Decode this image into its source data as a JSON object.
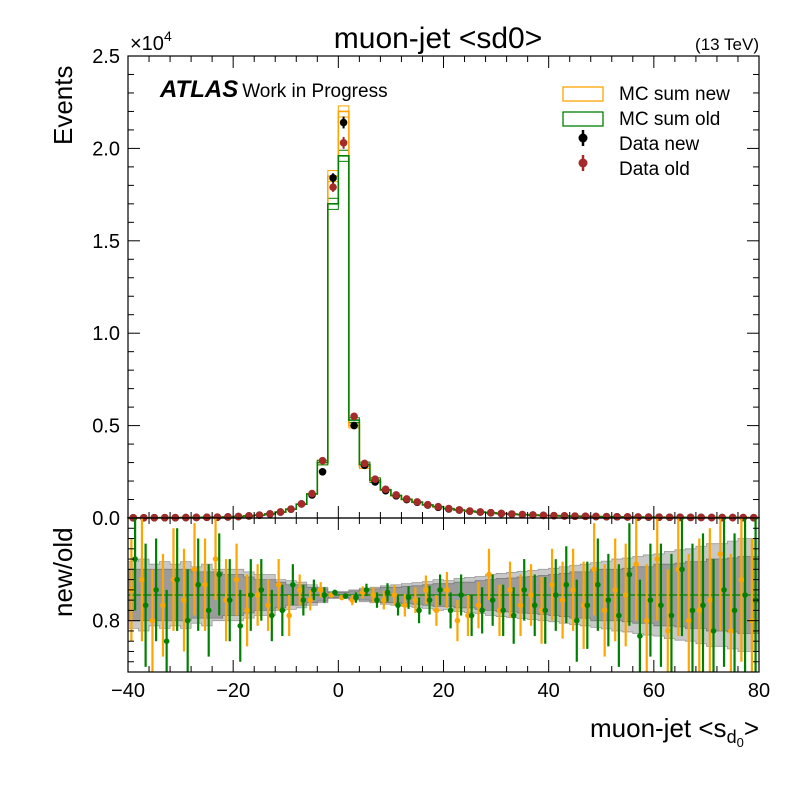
{
  "chart_data": [
    {
      "type": "histogram",
      "title": "muon-jet <sd0>",
      "energy_label": "(13 TeV)",
      "ylabel": "Events",
      "y_multiplier": "×10",
      "y_multiplier_exp": "4",
      "experiment": "ATLAS",
      "experiment_suffix": "Work in Progress",
      "xlim": [
        -40,
        80
      ],
      "ylim": [
        0,
        25000
      ],
      "x_ticks": [
        -40,
        -20,
        0,
        20,
        40,
        60,
        80
      ],
      "y_ticks": [
        0,
        5000,
        10000,
        15000,
        20000,
        25000
      ],
      "y_tick_labels": [
        "0.0",
        "0.5",
        "1.0",
        "1.5",
        "2.0",
        "2.5"
      ],
      "legend_position": "top-right",
      "legend": [
        {
          "label": "MC sum new",
          "kind": "mc",
          "color": "#ffa500"
        },
        {
          "label": "MC sum old",
          "kind": "mc",
          "color": "#008000"
        },
        {
          "label": "Data new",
          "kind": "data",
          "color": "#000000"
        },
        {
          "label": "Data old",
          "kind": "data",
          "color": "#a52a2a"
        }
      ],
      "bin_edges": [
        -40,
        -38,
        -36,
        -34,
        -32,
        -30,
        -28,
        -26,
        -24,
        -22,
        -20,
        -18,
        -16,
        -14,
        -12,
        -10,
        -8,
        -6,
        -4,
        -2,
        0,
        2,
        4,
        6,
        8,
        10,
        12,
        14,
        16,
        18,
        20,
        22,
        24,
        26,
        28,
        30,
        32,
        34,
        36,
        38,
        40,
        42,
        44,
        46,
        48,
        50,
        52,
        54,
        56,
        58,
        60,
        62,
        64,
        66,
        68,
        70,
        72,
        74,
        76,
        78,
        80
      ],
      "mc_new": [
        10,
        12,
        14,
        16,
        18,
        22,
        28,
        35,
        45,
        60,
        80,
        110,
        150,
        220,
        320,
        480,
        750,
        1300,
        3000,
        18500,
        22000,
        5000,
        2800,
        2000,
        1500,
        1200,
        1000,
        850,
        700,
        600,
        500,
        430,
        370,
        320,
        280,
        240,
        210,
        180,
        160,
        140,
        125,
        110,
        98,
        88,
        80,
        72,
        65,
        58,
        52,
        47,
        43,
        39,
        35,
        32,
        29,
        26,
        24,
        22,
        20,
        18
      ],
      "mc_old": [
        10,
        12,
        14,
        16,
        18,
        22,
        28,
        35,
        45,
        60,
        80,
        110,
        150,
        220,
        320,
        480,
        750,
        1300,
        3000,
        17000,
        19600,
        5300,
        2900,
        2050,
        1530,
        1220,
        1010,
        860,
        710,
        610,
        505,
        435,
        372,
        322,
        282,
        242,
        212,
        182,
        161,
        141,
        126,
        111,
        99,
        89,
        81,
        73,
        66,
        59,
        53,
        48,
        44,
        40,
        36,
        33,
        30,
        27,
        25,
        23,
        21,
        19
      ],
      "data_new": [
        10,
        12,
        14,
        16,
        18,
        22,
        28,
        35,
        45,
        60,
        80,
        110,
        150,
        220,
        320,
        480,
        760,
        1250,
        2500,
        18400,
        21400,
        5000,
        2850,
        1950,
        1480,
        1200,
        1000,
        850,
        700,
        580,
        490,
        430,
        370,
        320,
        280,
        240,
        210,
        180,
        160,
        140,
        125,
        110,
        98,
        88,
        80,
        72,
        65,
        58,
        52,
        47,
        43,
        39,
        35,
        32,
        29,
        26,
        24,
        22,
        20,
        18
      ],
      "data_old": [
        10,
        12,
        14,
        16,
        18,
        22,
        28,
        35,
        45,
        60,
        80,
        110,
        150,
        220,
        320,
        480,
        760,
        1320,
        3100,
        17900,
        20300,
        5500,
        2950,
        2100,
        1550,
        1250,
        1030,
        870,
        720,
        610,
        510,
        440,
        375,
        325,
        285,
        245,
        215,
        185,
        162,
        142,
        127,
        112,
        100,
        90,
        82,
        74,
        67,
        60,
        54,
        49,
        45,
        41,
        37,
        34,
        31,
        28,
        26,
        24,
        22,
        20
      ],
      "data_new_err": [
        90,
        90,
        90,
        90,
        90,
        90,
        90,
        90,
        90,
        90,
        90,
        90,
        90,
        90,
        90,
        90,
        90,
        90,
        100,
        250,
        320,
        120,
        90,
        90,
        90,
        90,
        90,
        90,
        90,
        90,
        90,
        90,
        90,
        90,
        90,
        90,
        90,
        90,
        90,
        90,
        90,
        90,
        90,
        90,
        90,
        90,
        90,
        90,
        90,
        90,
        90,
        90,
        90,
        90,
        90,
        90,
        90,
        90,
        90,
        90
      ],
      "data_old_err": [
        90,
        90,
        90,
        90,
        90,
        90,
        90,
        90,
        90,
        90,
        90,
        90,
        90,
        90,
        90,
        90,
        90,
        90,
        100,
        250,
        320,
        120,
        90,
        90,
        90,
        90,
        90,
        90,
        90,
        90,
        90,
        90,
        90,
        90,
        90,
        90,
        90,
        90,
        90,
        90,
        90,
        90,
        90,
        90,
        90,
        90,
        90,
        90,
        90,
        90,
        90,
        90,
        90,
        90,
        90,
        90,
        90,
        90,
        90,
        90
      ]
    },
    {
      "type": "ratio",
      "ylabel": "new/old",
      "xlabel": "muon-jet <s",
      "xlabel_sub": "d",
      "xlabel_subsub": "0",
      "xlabel_end": ">",
      "xlim": [
        -40,
        80
      ],
      "ylim": [
        0.7,
        1.0
      ],
      "y_ticks": [
        0.8
      ],
      "y_tick_labels": [
        "0.8"
      ],
      "reference_line": 0.85,
      "x_centers": [
        -39,
        -37,
        -35,
        -33,
        -31,
        -29,
        -27,
        -25,
        -23,
        -21,
        -19,
        -17,
        -15,
        -13,
        -11,
        -9,
        -7,
        -5,
        -3,
        -1,
        1,
        3,
        5,
        7,
        9,
        11,
        13,
        15,
        17,
        19,
        21,
        23,
        25,
        27,
        29,
        31,
        33,
        35,
        37,
        39,
        41,
        43,
        45,
        47,
        49,
        51,
        53,
        55,
        57,
        59,
        61,
        63,
        65,
        67,
        69,
        71,
        73,
        75,
        77,
        79
      ],
      "band_inner_half": [
        0.05,
        0.05,
        0.05,
        0.05,
        0.05,
        0.05,
        0.045,
        0.045,
        0.045,
        0.04,
        0.04,
        0.035,
        0.03,
        0.03,
        0.025,
        0.02,
        0.02,
        0.015,
        0.012,
        0.005,
        0.005,
        0.008,
        0.01,
        0.012,
        0.015,
        0.015,
        0.017,
        0.018,
        0.02,
        0.022,
        0.022,
        0.025,
        0.025,
        0.028,
        0.03,
        0.032,
        0.033,
        0.035,
        0.036,
        0.038,
        0.04,
        0.042,
        0.045,
        0.045,
        0.05,
        0.05,
        0.05,
        0.052,
        0.055,
        0.055,
        0.06,
        0.06,
        0.062,
        0.065,
        0.065,
        0.07,
        0.07,
        0.072,
        0.075,
        0.075
      ],
      "band_outer_half": [
        0.065,
        0.07,
        0.06,
        0.065,
        0.06,
        0.065,
        0.055,
        0.06,
        0.05,
        0.05,
        0.05,
        0.045,
        0.04,
        0.04,
        0.03,
        0.028,
        0.025,
        0.02,
        0.015,
        0.007,
        0.007,
        0.01,
        0.013,
        0.015,
        0.018,
        0.02,
        0.022,
        0.024,
        0.026,
        0.03,
        0.028,
        0.032,
        0.034,
        0.036,
        0.04,
        0.042,
        0.044,
        0.046,
        0.048,
        0.05,
        0.052,
        0.055,
        0.058,
        0.06,
        0.063,
        0.066,
        0.07,
        0.072,
        0.075,
        0.078,
        0.08,
        0.085,
        0.088,
        0.09,
        0.095,
        0.1,
        0.1,
        0.105,
        0.11,
        0.11
      ],
      "series": [
        {
          "color": "#ffa500",
          "values": [
            0.86,
            0.88,
            0.8,
            0.83,
            0.88,
            0.84,
            0.9,
            0.87,
            0.92,
            0.84,
            0.88,
            0.82,
            0.85,
            0.83,
            0.87,
            0.81,
            0.86,
            0.84,
            0.86,
            0.85,
            0.845,
            0.84,
            0.855,
            0.85,
            0.84,
            0.85,
            0.83,
            0.84,
            0.86,
            0.82,
            0.86,
            0.8,
            0.81,
            0.83,
            0.89,
            0.82,
            0.86,
            0.83,
            0.85,
            0.82,
            0.87,
            0.84,
            0.86,
            0.83,
            0.9,
            0.82,
            0.86,
            0.85,
            0.91,
            0.8,
            0.92,
            0.78,
            0.9,
            0.8,
            0.82,
            0.84,
            0.93,
            0.78,
            0.88,
            0.8
          ],
          "errors": [
            0.1,
            0.12,
            0.1,
            0.1,
            0.1,
            0.1,
            0.09,
            0.09,
            0.08,
            0.08,
            0.07,
            0.07,
            0.06,
            0.05,
            0.05,
            0.04,
            0.03,
            0.02,
            0.015,
            0.005,
            0.005,
            0.01,
            0.012,
            0.015,
            0.018,
            0.02,
            0.022,
            0.025,
            0.028,
            0.03,
            0.035,
            0.04,
            0.04,
            0.045,
            0.05,
            0.05,
            0.055,
            0.06,
            0.06,
            0.065,
            0.07,
            0.075,
            0.08,
            0.085,
            0.09,
            0.09,
            0.1,
            0.1,
            0.11,
            0.11,
            0.12,
            0.12,
            0.13,
            0.13,
            0.14,
            0.14,
            0.15,
            0.15,
            0.16,
            0.16
          ]
        },
        {
          "color": "#008000",
          "values": [
            0.92,
            0.83,
            0.86,
            0.76,
            0.88,
            0.8,
            0.87,
            0.82,
            0.89,
            0.84,
            0.79,
            0.85,
            0.86,
            0.81,
            0.82,
            0.87,
            0.84,
            0.86,
            0.85,
            0.855,
            0.848,
            0.845,
            0.86,
            0.84,
            0.855,
            0.83,
            0.845,
            0.82,
            0.84,
            0.86,
            0.82,
            0.85,
            0.81,
            0.82,
            0.84,
            0.82,
            0.81,
            0.86,
            0.83,
            0.82,
            0.85,
            0.87,
            0.8,
            0.83,
            0.87,
            0.84,
            0.81,
            0.89,
            0.77,
            0.84,
            0.83,
            0.81,
            0.9,
            0.82,
            0.83,
            0.78,
            0.86,
            0.82,
            0.85,
            0.84
          ],
          "errors": [
            0.1,
            0.12,
            0.1,
            0.1,
            0.1,
            0.1,
            0.09,
            0.09,
            0.08,
            0.08,
            0.07,
            0.07,
            0.06,
            0.05,
            0.05,
            0.04,
            0.03,
            0.02,
            0.015,
            0.005,
            0.005,
            0.01,
            0.012,
            0.015,
            0.018,
            0.02,
            0.022,
            0.025,
            0.028,
            0.03,
            0.035,
            0.04,
            0.04,
            0.045,
            0.05,
            0.05,
            0.055,
            0.06,
            0.06,
            0.065,
            0.07,
            0.075,
            0.08,
            0.085,
            0.09,
            0.09,
            0.1,
            0.1,
            0.11,
            0.11,
            0.12,
            0.12,
            0.13,
            0.13,
            0.14,
            0.14,
            0.15,
            0.15,
            0.16,
            0.16
          ]
        }
      ]
    }
  ]
}
